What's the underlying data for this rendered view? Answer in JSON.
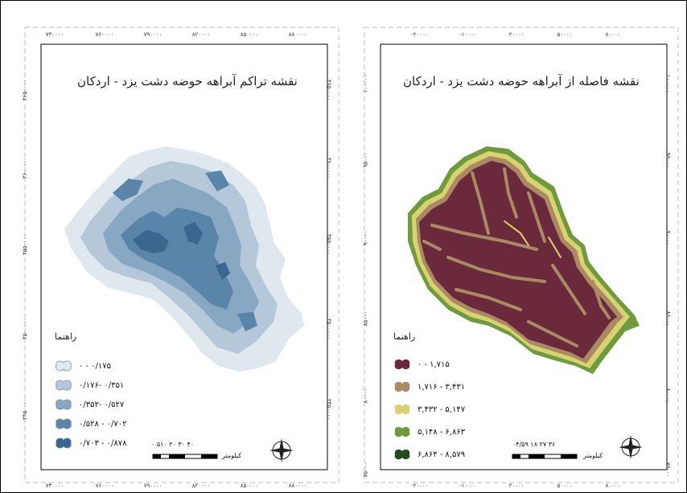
{
  "left_map": {
    "title": "نقشه تراکم آبراهه حوضه دشت یزد - اردکان",
    "top_ticks": [
      "۷۳۰۰۰۰",
      "۷۶۰۰۰۰",
      "۷۹۰۰۰۰",
      "۸۲۰۰۰۰",
      "۸۵۰۰۰۰",
      "۸۸۰۰۰۰"
    ],
    "bottom_ticks": [
      "۷۳۰۰۰۰",
      "۷۶۰۰۰۰",
      "۷۹۰۰۰۰",
      "۸۲۰۰۰۰",
      "۸۵۰۰۰۰",
      "۸۸۰۰۰۰"
    ],
    "side_ticks": [
      "۳۶۵۰۰۰۰",
      "۳۶۰۰۰۰۰",
      "۳۵۵۰۰۰۰",
      "۳۵۰۰۰۰۰",
      "۳۴۵۰۰۰۰"
    ],
    "legend_title": "راهنما",
    "legend": [
      {
        "label": "۰ - ۰/۱۷۵",
        "color": "#dfe7ef"
      },
      {
        "label": "۰/۱۷۶- ۰/۳۵۱",
        "color": "#b4c8d9"
      },
      {
        "label": "۰/۳۵۲- ۰/۵۲۷",
        "color": "#87a7c2"
      },
      {
        "label": "۰/۵۲۸ - ۰/۷۰۲",
        "color": "#5b84a9"
      },
      {
        "label": "۰/۷۰۳ - ۰/۸۷۸",
        "color": "#3a6690"
      }
    ],
    "scale_numbers": "۰ ۵۱۰  ۲۰   ۳۰   ۴۰",
    "scale_unit": "کیلومتر"
  },
  "right_map": {
    "title": "نقشه فاصله از آبراهه حوضه دشت یزد - اردکان",
    "top_ticks": [
      "-۲۰۰۰۰",
      "-۱۰۰۰۰",
      "۲۰۰۰۰",
      "۵۰۰۰۰",
      "۸۰۰۰۰"
    ],
    "bottom_ticks": [
      "-۲۰۰۰۰",
      "-۱۰۰۰۰",
      "۲۰۰۰۰",
      "۵۰۰۰۰",
      "۸۰۰۰۰"
    ],
    "side_ticks": [
      "۱۰۰۰۰۰",
      "۹۵۰۰۰",
      "۹۰۰۰۰",
      "۸۵۰۰۰",
      "۸۰۰۰۰",
      "۷۵۰۰۰"
    ],
    "legend_title": "راهنما",
    "legend": [
      {
        "label": "۰ - ۱,۷۱۵",
        "color": "#6b2a3c"
      },
      {
        "label": "۱,۷۱۶ - ۳,۴۳۱",
        "color": "#a98a64"
      },
      {
        "label": "۳,۴۳۲ - ۵,۱۴۷",
        "color": "#d8d370"
      },
      {
        "label": "۵,۱۴۸ - ۶,۸۶۳",
        "color": "#6f9a3d"
      },
      {
        "label": "۶,۸۶۴ - ۸,۵۷۹",
        "color": "#234d1c"
      }
    ],
    "scale_numbers": "۰۴/۵۹   ۱۸   ۲۷   ۳۶",
    "scale_unit": "کیلومتر"
  }
}
